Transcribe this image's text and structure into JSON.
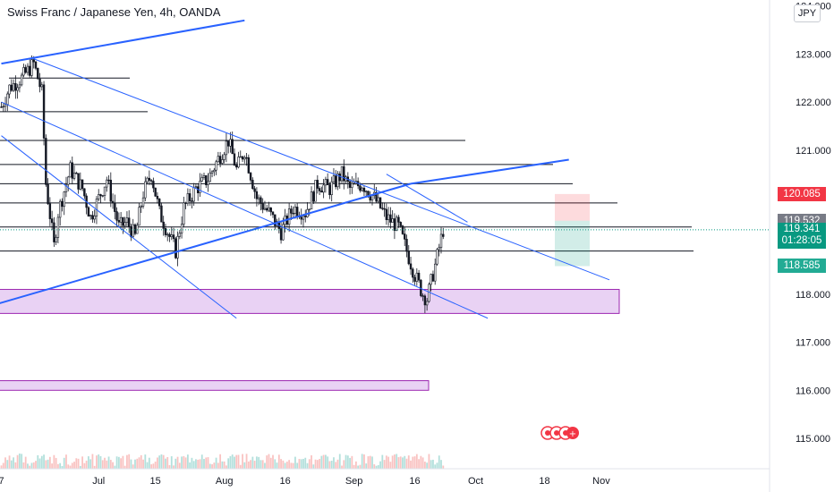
{
  "header": {
    "title": "Swiss Franc / Japanese Yen, 4h, OANDA",
    "currency": "JPY"
  },
  "colors": {
    "up": "#26a69a",
    "down": "#ef5350",
    "candle": "#131722",
    "trend": "#2962ff",
    "level": "#131722",
    "zone_fill": "#e9d2f4",
    "zone_stroke": "#9c27b0",
    "axis_text": "#131722",
    "grid": "#e0e3eb"
  },
  "chart_data": {
    "type": "candlestick",
    "symbol": "CHFJPY",
    "timeframe": "4h",
    "ylim": [
      114.5,
      124.0
    ],
    "y_ticks": [
      {
        "v": 124.0,
        "label": "124.000"
      },
      {
        "v": 123.0,
        "label": "123.000"
      },
      {
        "v": 122.0,
        "label": "122.000"
      },
      {
        "v": 121.0,
        "label": "121.000"
      },
      {
        "v": 118.0,
        "label": "118.000"
      },
      {
        "v": 117.0,
        "label": "117.000"
      },
      {
        "v": 116.0,
        "label": "116.000"
      },
      {
        "v": 115.0,
        "label": "115.000"
      }
    ],
    "x_ticks": [
      {
        "label": "7",
        "day": 0
      },
      {
        "label": "Jul",
        "day": 24
      },
      {
        "label": "15",
        "day": 38
      },
      {
        "label": "Aug",
        "day": 55
      },
      {
        "label": "16",
        "day": 70
      },
      {
        "label": "Sep",
        "day": 87
      },
      {
        "label": "16",
        "day": 102
      },
      {
        "label": "Oct",
        "day": 117
      },
      {
        "label": "18",
        "day": 134
      },
      {
        "label": "Nov",
        "day": 148
      }
    ],
    "price_path": [
      [
        0,
        121.9
      ],
      [
        2,
        122.3
      ],
      [
        5,
        122.5
      ],
      [
        8,
        122.8
      ],
      [
        10,
        122.2
      ],
      [
        11,
        120.3
      ],
      [
        13,
        119.0
      ],
      [
        14,
        119.7
      ],
      [
        17,
        120.6
      ],
      [
        20,
        120.2
      ],
      [
        22,
        119.6
      ],
      [
        26,
        120.4
      ],
      [
        29,
        119.4
      ],
      [
        31,
        119.5
      ],
      [
        33,
        119.2
      ],
      [
        35,
        120.1
      ],
      [
        37,
        120.5
      ],
      [
        39,
        119.7
      ],
      [
        41,
        119.3
      ],
      [
        43,
        118.9
      ],
      [
        45,
        119.8
      ],
      [
        48,
        120.2
      ],
      [
        51,
        120.4
      ],
      [
        54,
        120.9
      ],
      [
        56,
        121.2
      ],
      [
        58,
        120.6
      ],
      [
        60,
        121.0
      ],
      [
        63,
        120.0
      ],
      [
        66,
        119.7
      ],
      [
        69,
        119.3
      ],
      [
        72,
        119.8
      ],
      [
        75,
        119.7
      ],
      [
        78,
        120.3
      ],
      [
        81,
        120.2
      ],
      [
        84,
        120.5
      ],
      [
        86,
        120.2
      ],
      [
        89,
        120.3
      ],
      [
        92,
        120.0
      ],
      [
        95,
        119.6
      ],
      [
        98,
        119.4
      ],
      [
        100,
        118.9
      ],
      [
        102,
        118.4
      ],
      [
        104,
        118.0
      ],
      [
        105,
        117.9
      ],
      [
        107,
        118.6
      ],
      [
        109,
        119.34
      ]
    ],
    "horizontal_levels": [
      122.5,
      121.8,
      121.2,
      120.7,
      120.3,
      119.9,
      119.4,
      118.9
    ],
    "zones": [
      {
        "from": 117.6,
        "to": 118.1
      },
      {
        "from": 116.0,
        "to": 116.2
      }
    ],
    "trendlines": [
      {
        "d1": -5,
        "p1": 117.7,
        "d2": 101,
        "p2": 120.3
      },
      {
        "d1": 101,
        "p1": 120.3,
        "d2": 140,
        "p2": 120.8
      },
      {
        "d1": 0,
        "p1": 122.8,
        "d2": 60,
        "p2": 123.7
      },
      {
        "d1": 0,
        "p1": 121.3,
        "d2": 58,
        "p2": 117.5
      },
      {
        "d1": 8,
        "p1": 122.9,
        "d2": 150,
        "p2": 118.3
      },
      {
        "d1": 0,
        "p1": 122.0,
        "d2": 120,
        "p2": 117.5
      },
      {
        "d1": 95,
        "p1": 120.5,
        "d2": 115,
        "p2": 119.5
      }
    ],
    "position_box": {
      "entry": 119.53,
      "stop": 120.085,
      "target": 118.585
    },
    "price_labels": [
      {
        "v": 120.085,
        "label": "120.085",
        "color": "#f23645"
      },
      {
        "v": 119.532,
        "label": "119.532",
        "color": "#787b86"
      },
      {
        "v": 118.585,
        "label": "118.585",
        "color": "#22ab94"
      }
    ],
    "last_price": {
      "v": 119.341,
      "label": "119.341",
      "countdown": "01:28:05",
      "color": "#089981"
    }
  }
}
